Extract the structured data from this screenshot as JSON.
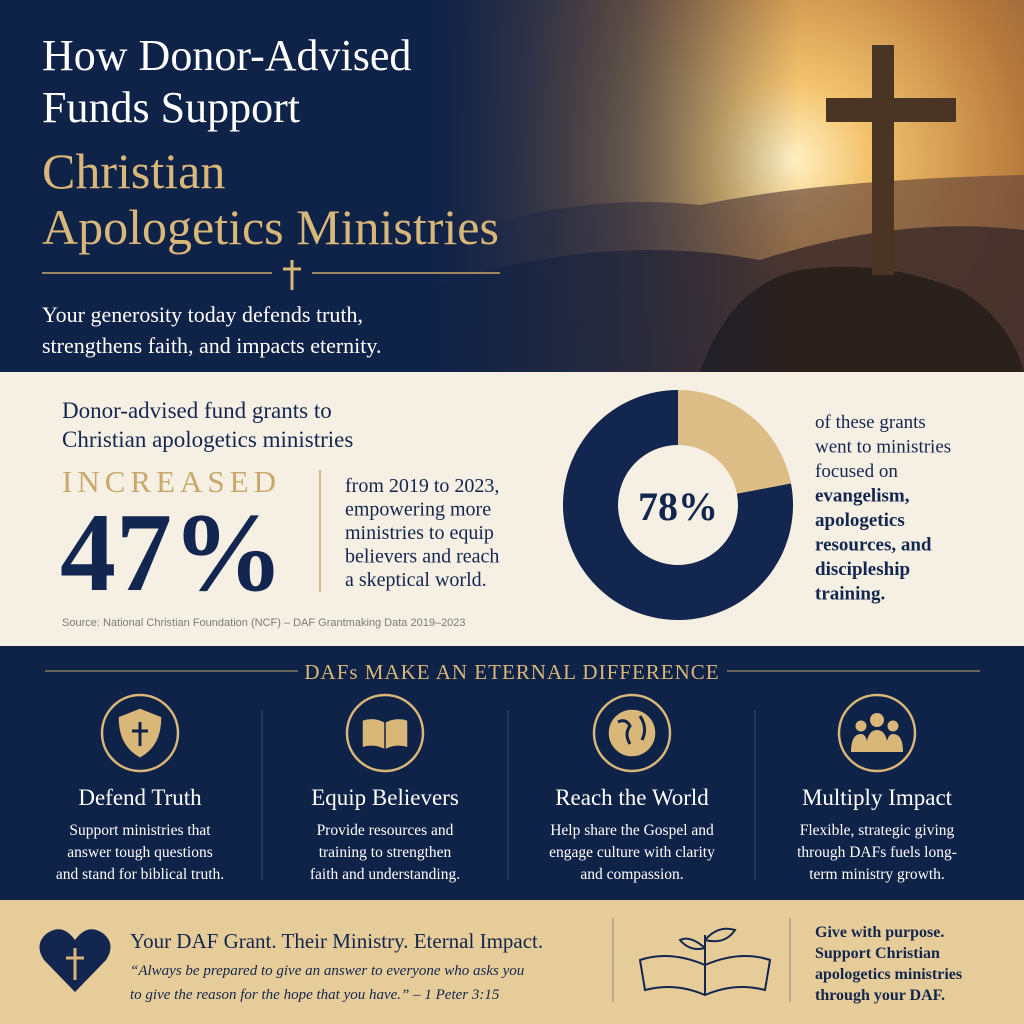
{
  "header": {
    "title_lines": [
      "How Donor-Advised",
      "Funds Support"
    ],
    "highlight_lines": [
      "Christian",
      "Apologetics Ministries"
    ],
    "subtitle_lines": [
      "Your generosity today defends truth,",
      "strengthens faith, and impacts eternity."
    ]
  },
  "stat": {
    "intro_lines": [
      "Donor-advised fund grants to",
      "Christian apologetics ministries"
    ],
    "label": "INCREASED",
    "figure": "47%",
    "description_lines": [
      "from 2019 to 2023,",
      "empowering more",
      "ministries to equip",
      "believers and reach",
      "a skeptical world."
    ],
    "source": "Source: National Christian Foundation (NCF) – DAF Grantmaking Data 2019–2023"
  },
  "donut": {
    "type": "pie",
    "values": [
      78
    ],
    "value_labels": [
      "78%"
    ],
    "description_lines": [
      "of these grants",
      "went to ministries",
      "focused on"
    ],
    "emphasis_lines": [
      "evangelism,",
      "apologetics",
      "resources, and",
      "discipleship",
      "training."
    ]
  },
  "benefits": {
    "heading": "DAFs MAKE AN ETERNAL DIFFERENCE",
    "items": [
      {
        "title": "Defend Truth",
        "lines": [
          "Support ministries that",
          "answer tough questions",
          "and stand for biblical truth."
        ]
      },
      {
        "title": "Equip Believers",
        "lines": [
          "Provide resources and",
          "training to strengthen",
          "faith and understanding."
        ]
      },
      {
        "title": "Reach the World",
        "lines": [
          "Help share the Gospel and",
          "engage culture with clarity",
          "and compassion."
        ]
      },
      {
        "title": "Multiply Impact",
        "lines": [
          "Flexible, strategic giving",
          "through DAFs fuels long-",
          "term ministry growth."
        ]
      }
    ]
  },
  "footer": {
    "tagline": "Your DAF Grant. Their Ministry. Eternal Impact.",
    "quote_lines": [
      "“Always be prepared to give an answer to everyone who asks you",
      "to give the reason for the hope that you have.” – 1 Peter 3:15"
    ],
    "cta_lines": [
      "Give with purpose.",
      "Support Christian",
      "apologetics ministries",
      "through your DAF."
    ]
  }
}
